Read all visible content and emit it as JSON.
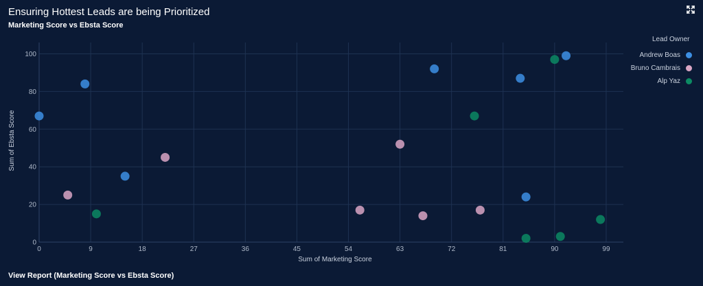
{
  "header": {
    "title": "Ensuring Hottest Leads are being Prioritized",
    "subtitle": "Marketing Score vs Ebsta Score",
    "expand_icon": "expand-icon"
  },
  "footer": {
    "link_label": "View Report (Marketing Score vs Ebsta Score)"
  },
  "chart_data": {
    "type": "scatter",
    "xlabel": "Sum of Marketing Score",
    "ylabel": "Sum of Ebsta Score",
    "xlim": [
      0,
      102
    ],
    "ylim": [
      0,
      106
    ],
    "xticks": [
      "0",
      "9",
      "18",
      "27",
      "36",
      "45",
      "54",
      "63",
      "72",
      "81",
      "90",
      "99"
    ],
    "yticks": [
      "0",
      "20",
      "40",
      "60",
      "80",
      "100"
    ],
    "grid": true,
    "legend": {
      "title": "Lead Owner",
      "position": "top-right"
    },
    "series": [
      {
        "name": "Andrew Boas",
        "color": "#3d8fe3",
        "points": [
          [
            0,
            67
          ],
          [
            8,
            84
          ],
          [
            15,
            35
          ],
          [
            69,
            92
          ],
          [
            84,
            87
          ],
          [
            85,
            24
          ],
          [
            92,
            99
          ]
        ]
      },
      {
        "name": "Bruno Cambrais",
        "color": "#d9a6c4",
        "points": [
          [
            5,
            25
          ],
          [
            22,
            45
          ],
          [
            56,
            17
          ],
          [
            63,
            52
          ],
          [
            67,
            14
          ],
          [
            77,
            17
          ]
        ]
      },
      {
        "name": "Alp Yaz",
        "color": "#0c8a63",
        "points": [
          [
            10,
            15
          ],
          [
            76,
            67
          ],
          [
            85,
            2
          ],
          [
            90,
            97
          ],
          [
            91,
            3
          ],
          [
            98,
            12
          ]
        ]
      }
    ]
  }
}
